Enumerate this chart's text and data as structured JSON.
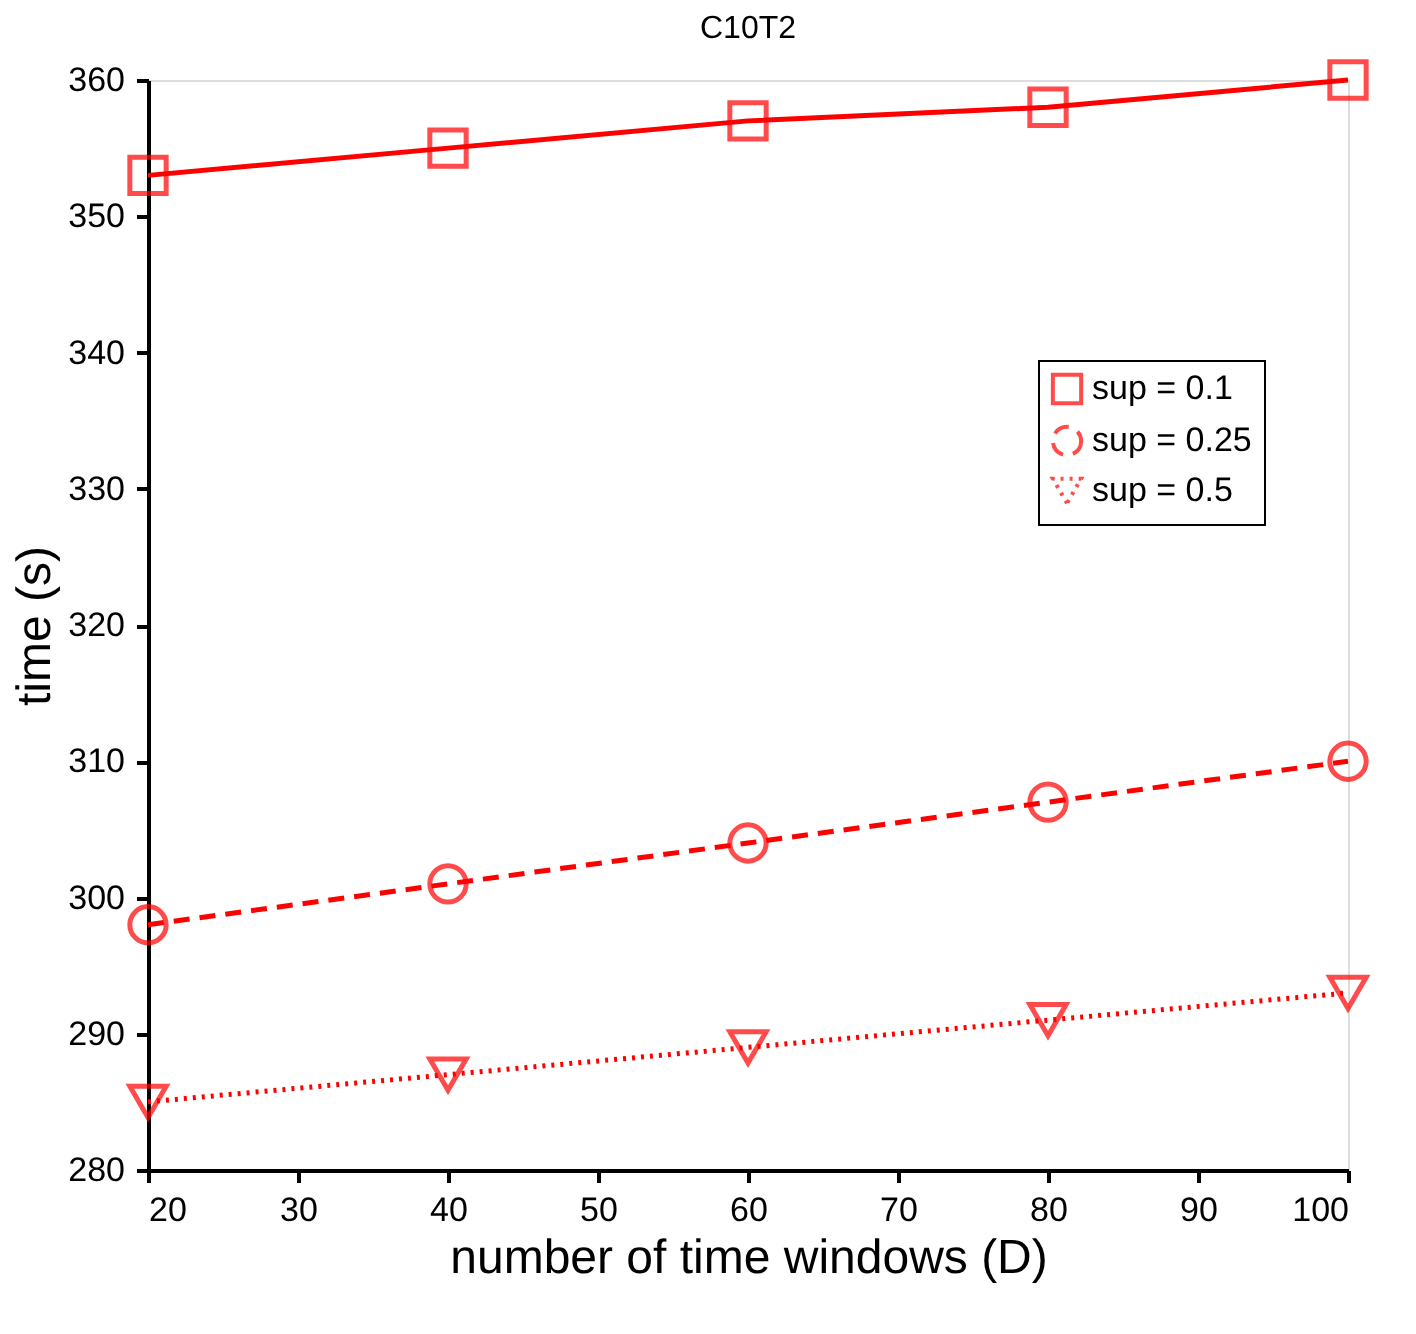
{
  "chart_data": {
    "type": "line",
    "title": "C10T2",
    "xlabel": "number of time windows (D)",
    "ylabel": "time (s)",
    "x": [
      20,
      40,
      60,
      80,
      100
    ],
    "series": [
      {
        "name": "sup = 0.1",
        "color": "#ff0000",
        "marker": "square",
        "line_style": "solid",
        "values": [
          353,
          355,
          357,
          358,
          360
        ]
      },
      {
        "name": "sup = 0.25",
        "color": "#ff0000",
        "marker": "circle",
        "line_style": "dashed",
        "values": [
          298,
          301,
          304,
          307,
          310
        ]
      },
      {
        "name": "sup = 0.5",
        "color": "#ff0000",
        "marker": "triangle-down",
        "line_style": "dotted",
        "values": [
          285,
          287,
          289,
          291,
          293
        ]
      }
    ],
    "xlim": [
      20,
      100
    ],
    "xticks": [
      20,
      30,
      40,
      50,
      60,
      70,
      80,
      90,
      100
    ],
    "ylim": [
      280,
      360
    ],
    "yticks": [
      280,
      290,
      300,
      310,
      320,
      330,
      340,
      350,
      360
    ],
    "grid": false,
    "legend": "top right"
  }
}
